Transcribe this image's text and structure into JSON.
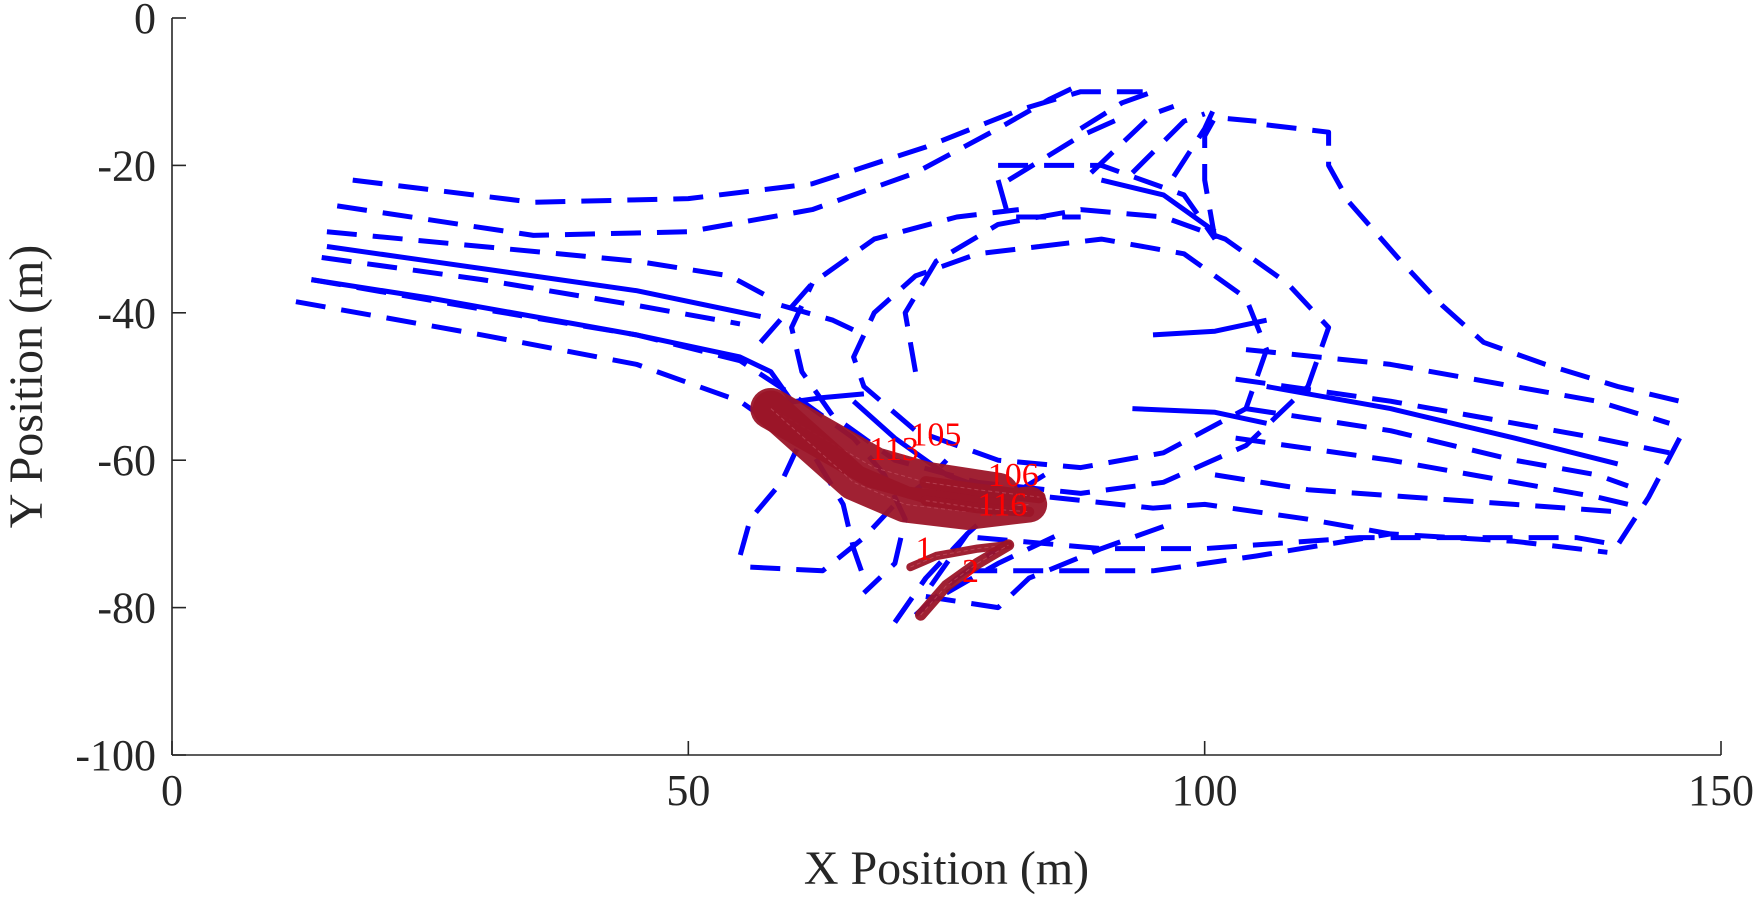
{
  "chart_data": {
    "type": "line",
    "title": "",
    "xlabel": "X Position (m)",
    "ylabel": "Y Position (m)",
    "xlim": [
      0,
      150
    ],
    "ylim": [
      -100,
      0
    ],
    "grid": false,
    "colors": {
      "lane": "#0000ff",
      "track": "#9b1528",
      "label": "#ff0000",
      "axis": "#262626"
    },
    "x_ticks": [
      0,
      50,
      100,
      150
    ],
    "y_ticks": [
      0,
      -20,
      -40,
      -60,
      -80,
      -100
    ],
    "x_tick_labels": [
      "0",
      "50",
      "100",
      "150"
    ],
    "y_tick_labels": [
      "0",
      "-20",
      "-40",
      "-60",
      "-80",
      "-100"
    ],
    "lane_markings": [
      {
        "style": "dashed",
        "points": [
          [
            12,
            -38.5
          ],
          [
            30,
            -43
          ],
          [
            45,
            -47
          ],
          [
            55,
            -52
          ],
          [
            62,
            -59
          ],
          [
            65,
            -66
          ],
          [
            66,
            -72
          ],
          [
            67,
            -76
          ]
        ]
      },
      {
        "style": "dashed",
        "points": [
          [
            13.5,
            -35.5
          ],
          [
            30,
            -39.5
          ],
          [
            45,
            -43
          ],
          [
            55,
            -46.5
          ],
          [
            61,
            -52
          ],
          [
            66,
            -57
          ],
          [
            69,
            -62
          ],
          [
            71,
            -68
          ],
          [
            70,
            -74
          ],
          [
            67,
            -78
          ]
        ]
      },
      {
        "style": "dashed",
        "points": [
          [
            14.5,
            -32.5
          ],
          [
            30,
            -35.5
          ],
          [
            45,
            -39
          ],
          [
            55,
            -41.5
          ]
        ]
      },
      {
        "style": "dashed",
        "points": [
          [
            15,
            -29
          ],
          [
            30,
            -31
          ],
          [
            45,
            -33
          ],
          [
            54,
            -35
          ],
          [
            58,
            -38
          ]
        ]
      },
      {
        "style": "dashed",
        "points": [
          [
            16,
            -25.5
          ],
          [
            35,
            -29.5
          ],
          [
            50,
            -29
          ],
          [
            62,
            -26
          ],
          [
            72,
            -21
          ],
          [
            80,
            -15
          ],
          [
            85,
            -11
          ],
          [
            88,
            -9
          ]
        ]
      },
      {
        "style": "dashed",
        "points": [
          [
            17.5,
            -22
          ],
          [
            35,
            -25
          ],
          [
            50,
            -24.5
          ],
          [
            62,
            -22.5
          ],
          [
            73,
            -17.5
          ],
          [
            82,
            -12.5
          ],
          [
            88,
            -10
          ],
          [
            94,
            -10
          ]
        ]
      },
      {
        "style": "dashed",
        "points": [
          [
            88,
            -15
          ],
          [
            92,
            -11.5
          ],
          [
            95,
            -10
          ]
        ]
      },
      {
        "style": "dashed",
        "points": [
          [
            81,
            -22
          ],
          [
            88,
            -16
          ],
          [
            92,
            -13.5
          ]
        ]
      },
      {
        "style": "dashed",
        "points": [
          [
            89,
            -21
          ],
          [
            95,
            -13
          ],
          [
            97,
            -12
          ]
        ]
      },
      {
        "style": "dashed",
        "points": [
          [
            93,
            -21
          ],
          [
            98,
            -14
          ],
          [
            100,
            -13
          ]
        ]
      },
      {
        "style": "dashed",
        "points": [
          [
            97,
            -21.5
          ],
          [
            100,
            -15
          ],
          [
            101,
            -12
          ]
        ]
      },
      {
        "style": "dashed",
        "points": [
          [
            101,
            -30
          ],
          [
            100,
            -22
          ],
          [
            100,
            -16
          ],
          [
            101,
            -13.5
          ],
          [
            105,
            -14
          ]
        ]
      },
      {
        "style": "dashed",
        "points": [
          [
            106,
            -14.5
          ],
          [
            112,
            -15.5
          ],
          [
            112,
            -20
          ],
          [
            114,
            -25
          ],
          [
            119,
            -33
          ],
          [
            123,
            -39
          ],
          [
            127,
            -44
          ],
          [
            133,
            -47
          ],
          [
            140,
            -50
          ],
          [
            146,
            -52
          ]
        ]
      },
      {
        "style": "dashed",
        "points": [
          [
            104,
            -45
          ],
          [
            118,
            -47
          ],
          [
            130,
            -50
          ],
          [
            138,
            -52
          ],
          [
            145,
            -55
          ]
        ]
      },
      {
        "style": "dashed",
        "points": [
          [
            103,
            -49
          ],
          [
            118,
            -52
          ],
          [
            130,
            -55
          ],
          [
            138,
            -57
          ],
          [
            145,
            -59
          ]
        ]
      },
      {
        "style": "dashed",
        "points": [
          [
            104,
            -53
          ],
          [
            118,
            -56
          ],
          [
            130,
            -60
          ],
          [
            138,
            -62
          ],
          [
            141,
            -63.5
          ]
        ]
      },
      {
        "style": "dashed",
        "points": [
          [
            103,
            -57
          ],
          [
            118,
            -60
          ],
          [
            130,
            -63
          ],
          [
            138,
            -65
          ],
          [
            141,
            -66
          ]
        ]
      },
      {
        "style": "dashed",
        "points": [
          [
            101,
            -62
          ],
          [
            110,
            -64
          ],
          [
            120,
            -65
          ],
          [
            130,
            -66
          ],
          [
            140,
            -67
          ]
        ]
      },
      {
        "style": "dashed",
        "points": [
          [
            85,
            -65
          ],
          [
            95,
            -66.5
          ],
          [
            100,
            -66
          ],
          [
            110,
            -68
          ],
          [
            118,
            -70
          ],
          [
            130,
            -71
          ],
          [
            139,
            -72.5
          ]
        ]
      },
      {
        "style": "dashed",
        "points": [
          [
            78,
            -70.5
          ],
          [
            90,
            -72
          ],
          [
            100,
            -72
          ],
          [
            115,
            -70.5
          ],
          [
            128,
            -70.5
          ],
          [
            136,
            -70.5
          ],
          [
            140,
            -71.5
          ],
          [
            143,
            -65
          ],
          [
            146,
            -57
          ]
        ]
      },
      {
        "style": "dashed",
        "points": [
          [
            77,
            -75
          ],
          [
            85,
            -75
          ],
          [
            95,
            -75
          ],
          [
            105,
            -73
          ],
          [
            118,
            -70
          ]
        ]
      },
      {
        "style": "dashed",
        "points": [
          [
            73,
            -78.5
          ],
          [
            80,
            -80
          ],
          [
            83,
            -76
          ],
          [
            90,
            -72
          ],
          [
            97,
            -68.5
          ]
        ]
      },
      {
        "style": "dashed",
        "points": [
          [
            75,
            -78
          ],
          [
            80,
            -74
          ],
          [
            86,
            -70
          ]
        ]
      },
      {
        "style": "dashed",
        "points": [
          [
            73.5,
            -77
          ],
          [
            77,
            -70
          ],
          [
            81,
            -65
          ],
          [
            84.5,
            -62
          ]
        ]
      },
      {
        "style": "dashed",
        "points": [
          [
            72,
            -81
          ],
          [
            76,
            -76
          ],
          [
            80,
            -72
          ]
        ]
      },
      {
        "style": "dashed",
        "points": [
          [
            70,
            -82
          ],
          [
            73,
            -76
          ],
          [
            77,
            -70
          ]
        ]
      },
      {
        "style": "dashed",
        "points": [
          [
            56,
            -74.5
          ],
          [
            63,
            -75
          ],
          [
            67,
            -70.5
          ],
          [
            70,
            -66
          ],
          [
            73,
            -63
          ],
          [
            75,
            -60
          ]
        ]
      },
      {
        "style": "dashed",
        "points": [
          [
            70,
            -82
          ],
          [
            73,
            -76
          ]
        ]
      },
      {
        "style": "dashed",
        "points": [
          [
            60.5,
            -58.5
          ],
          [
            59,
            -63
          ],
          [
            56,
            -68
          ],
          [
            55,
            -73
          ]
        ]
      },
      {
        "style": "dashed",
        "points": [
          [
            57,
            -44
          ],
          [
            62,
            -36
          ],
          [
            68,
            -30
          ],
          [
            76,
            -27
          ],
          [
            82,
            -26
          ]
        ]
      },
      {
        "style": "dashed",
        "points": [
          [
            72,
            -48
          ],
          [
            71,
            -40
          ],
          [
            74,
            -33
          ],
          [
            80,
            -28
          ],
          [
            88,
            -26
          ],
          [
            96,
            -27
          ],
          [
            102,
            -30
          ],
          [
            108,
            -36
          ],
          [
            112,
            -42
          ],
          [
            110,
            -50
          ],
          [
            104,
            -58
          ],
          [
            96,
            -63
          ],
          [
            88,
            -64.5
          ],
          [
            78,
            -63
          ],
          [
            70,
            -60
          ],
          [
            64,
            -54
          ],
          [
            61,
            -48
          ],
          [
            60,
            -42
          ],
          [
            62,
            -36
          ]
        ]
      },
      {
        "style": "dashed",
        "points": [
          [
            84,
            -31
          ],
          [
            90,
            -30
          ],
          [
            98,
            -32
          ],
          [
            104,
            -38
          ],
          [
            106,
            -45
          ],
          [
            104,
            -53
          ],
          [
            96,
            -59
          ],
          [
            88,
            -61
          ],
          [
            80,
            -60
          ],
          [
            72,
            -56
          ],
          [
            67,
            -50
          ],
          [
            66,
            -46
          ],
          [
            68,
            -40
          ],
          [
            72,
            -35
          ],
          [
            78,
            -32
          ],
          [
            84,
            -31
          ]
        ]
      },
      {
        "style": "dashed",
        "points": [
          [
            80,
            -22
          ],
          [
            81,
            -27
          ],
          [
            88,
            -27
          ]
        ]
      },
      {
        "style": "dashed",
        "points": [
          [
            80,
            -20
          ],
          [
            90,
            -20
          ],
          [
            98,
            -24
          ],
          [
            101,
            -30
          ]
        ]
      },
      {
        "style": "dashed",
        "points": [
          [
            59,
            -39
          ],
          [
            64,
            -41
          ],
          [
            67,
            -43
          ]
        ]
      },
      {
        "style": "solid",
        "points": [
          [
            13.5,
            -35.5
          ],
          [
            25,
            -38
          ],
          [
            45,
            -43
          ],
          [
            55,
            -46
          ],
          [
            58,
            -48
          ],
          [
            60,
            -52
          ]
        ]
      },
      {
        "style": "solid",
        "points": [
          [
            15,
            -31
          ],
          [
            25,
            -33
          ],
          [
            45,
            -37
          ],
          [
            57,
            -40.5
          ]
        ]
      },
      {
        "style": "solid",
        "points": [
          [
            58,
            -52.5
          ],
          [
            63,
            -51.5
          ],
          [
            67,
            -51
          ]
        ]
      },
      {
        "style": "solid",
        "points": [
          [
            66,
            -52
          ],
          [
            70,
            -57
          ],
          [
            75,
            -62
          ],
          [
            81,
            -65
          ]
        ]
      },
      {
        "style": "solid",
        "points": [
          [
            95,
            -43
          ],
          [
            101,
            -42.5
          ],
          [
            106,
            -41
          ]
        ]
      },
      {
        "style": "solid",
        "points": [
          [
            93,
            -53
          ],
          [
            101,
            -53.5
          ],
          [
            106,
            -55
          ]
        ]
      },
      {
        "style": "solid",
        "points": [
          [
            106,
            -50
          ],
          [
            118,
            -53
          ],
          [
            130,
            -57
          ],
          [
            140,
            -60.5
          ]
        ]
      },
      {
        "style": "solid",
        "points": [
          [
            90,
            -22
          ],
          [
            96,
            -24
          ],
          [
            101,
            -29
          ]
        ]
      }
    ],
    "trajectories": [
      {
        "id": "105",
        "label_pos": [
          71.5,
          -58
        ],
        "points": [
          [
            58,
            -53
          ],
          [
            63,
            -57
          ],
          [
            68,
            -61
          ],
          [
            73,
            -63
          ],
          [
            80,
            -64.5
          ]
        ],
        "width_m": 4
      },
      {
        "id": "113",
        "label_pos": [
          67.5,
          -60
        ],
        "points": [
          [
            58,
            -53
          ],
          [
            62,
            -58
          ],
          [
            66,
            -63
          ],
          [
            71,
            -66
          ],
          [
            77,
            -67
          ],
          [
            83,
            -66
          ]
        ],
        "width_m": 3.5
      },
      {
        "id": "106",
        "label_pos": [
          79,
          -63.5
        ],
        "points": [
          [
            73,
            -63
          ],
          [
            78,
            -64
          ],
          [
            84,
            -65
          ]
        ],
        "width_m": 1.2
      },
      {
        "id": "116",
        "label_pos": [
          78,
          -67.5
        ],
        "points": [
          [
            73,
            -65.5
          ],
          [
            78,
            -66.5
          ],
          [
            83,
            -67
          ]
        ],
        "width_m": 1
      },
      {
        "id": "1",
        "label_pos": [
          72,
          -73.5
        ],
        "points": [
          [
            71.5,
            -74.5
          ],
          [
            74,
            -73
          ],
          [
            78,
            -72
          ],
          [
            81,
            -71.5
          ]
        ],
        "width_m": 0.8
      },
      {
        "id": "2",
        "label_pos": [
          76.5,
          -76.5
        ],
        "points": [
          [
            72.5,
            -81
          ],
          [
            75,
            -77
          ],
          [
            78,
            -74
          ],
          [
            81,
            -71.5
          ]
        ],
        "width_m": 1.1
      }
    ]
  }
}
